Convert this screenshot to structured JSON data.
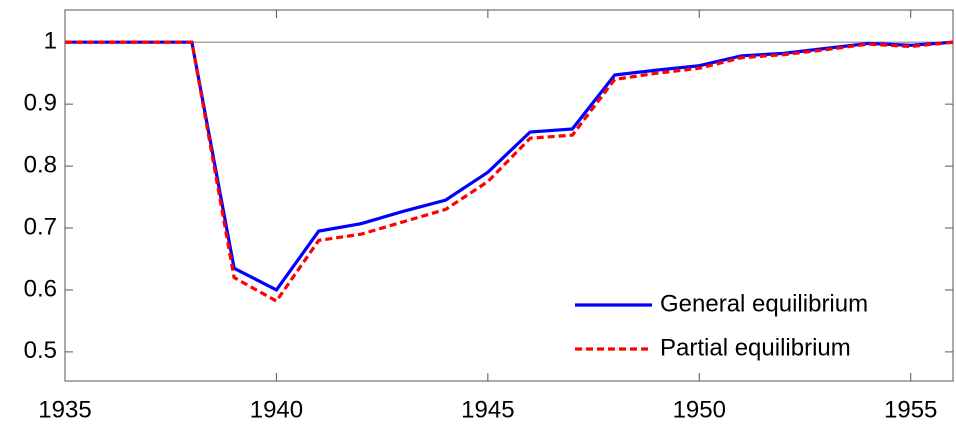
{
  "chart_data": {
    "type": "line",
    "x": [
      1935,
      1936,
      1937,
      1938,
      1939,
      1940,
      1941,
      1942,
      1943,
      1944,
      1945,
      1946,
      1947,
      1948,
      1949,
      1950,
      1951,
      1952,
      1953,
      1954,
      1955,
      1956
    ],
    "series": [
      {
        "name": "General equilibrium",
        "color": "#0000ff",
        "dash": false,
        "values": [
          1,
          1,
          1,
          1,
          0.635,
          0.6,
          0.695,
          0.707,
          0.727,
          0.745,
          0.79,
          0.855,
          0.86,
          0.947,
          0.955,
          0.962,
          0.978,
          0.982,
          0.99,
          0.998,
          0.995,
          1.0
        ]
      },
      {
        "name": "Partial equilibrium",
        "color": "#ff0000",
        "dash": true,
        "values": [
          1,
          1,
          1,
          1,
          0.62,
          0.582,
          0.68,
          0.69,
          0.71,
          0.73,
          0.775,
          0.845,
          0.85,
          0.94,
          0.95,
          0.958,
          0.975,
          0.98,
          0.988,
          0.997,
          0.993,
          1.0
        ]
      }
    ],
    "xlim": [
      1935,
      1956
    ],
    "xticks": [
      1935,
      1940,
      1945,
      1950,
      1955
    ],
    "ylim": [
      0.453,
      1.052
    ],
    "yticks": [
      0.5,
      0.6,
      0.7,
      0.8,
      0.9,
      1
    ],
    "reference_line": 1,
    "legend": "lower right"
  }
}
